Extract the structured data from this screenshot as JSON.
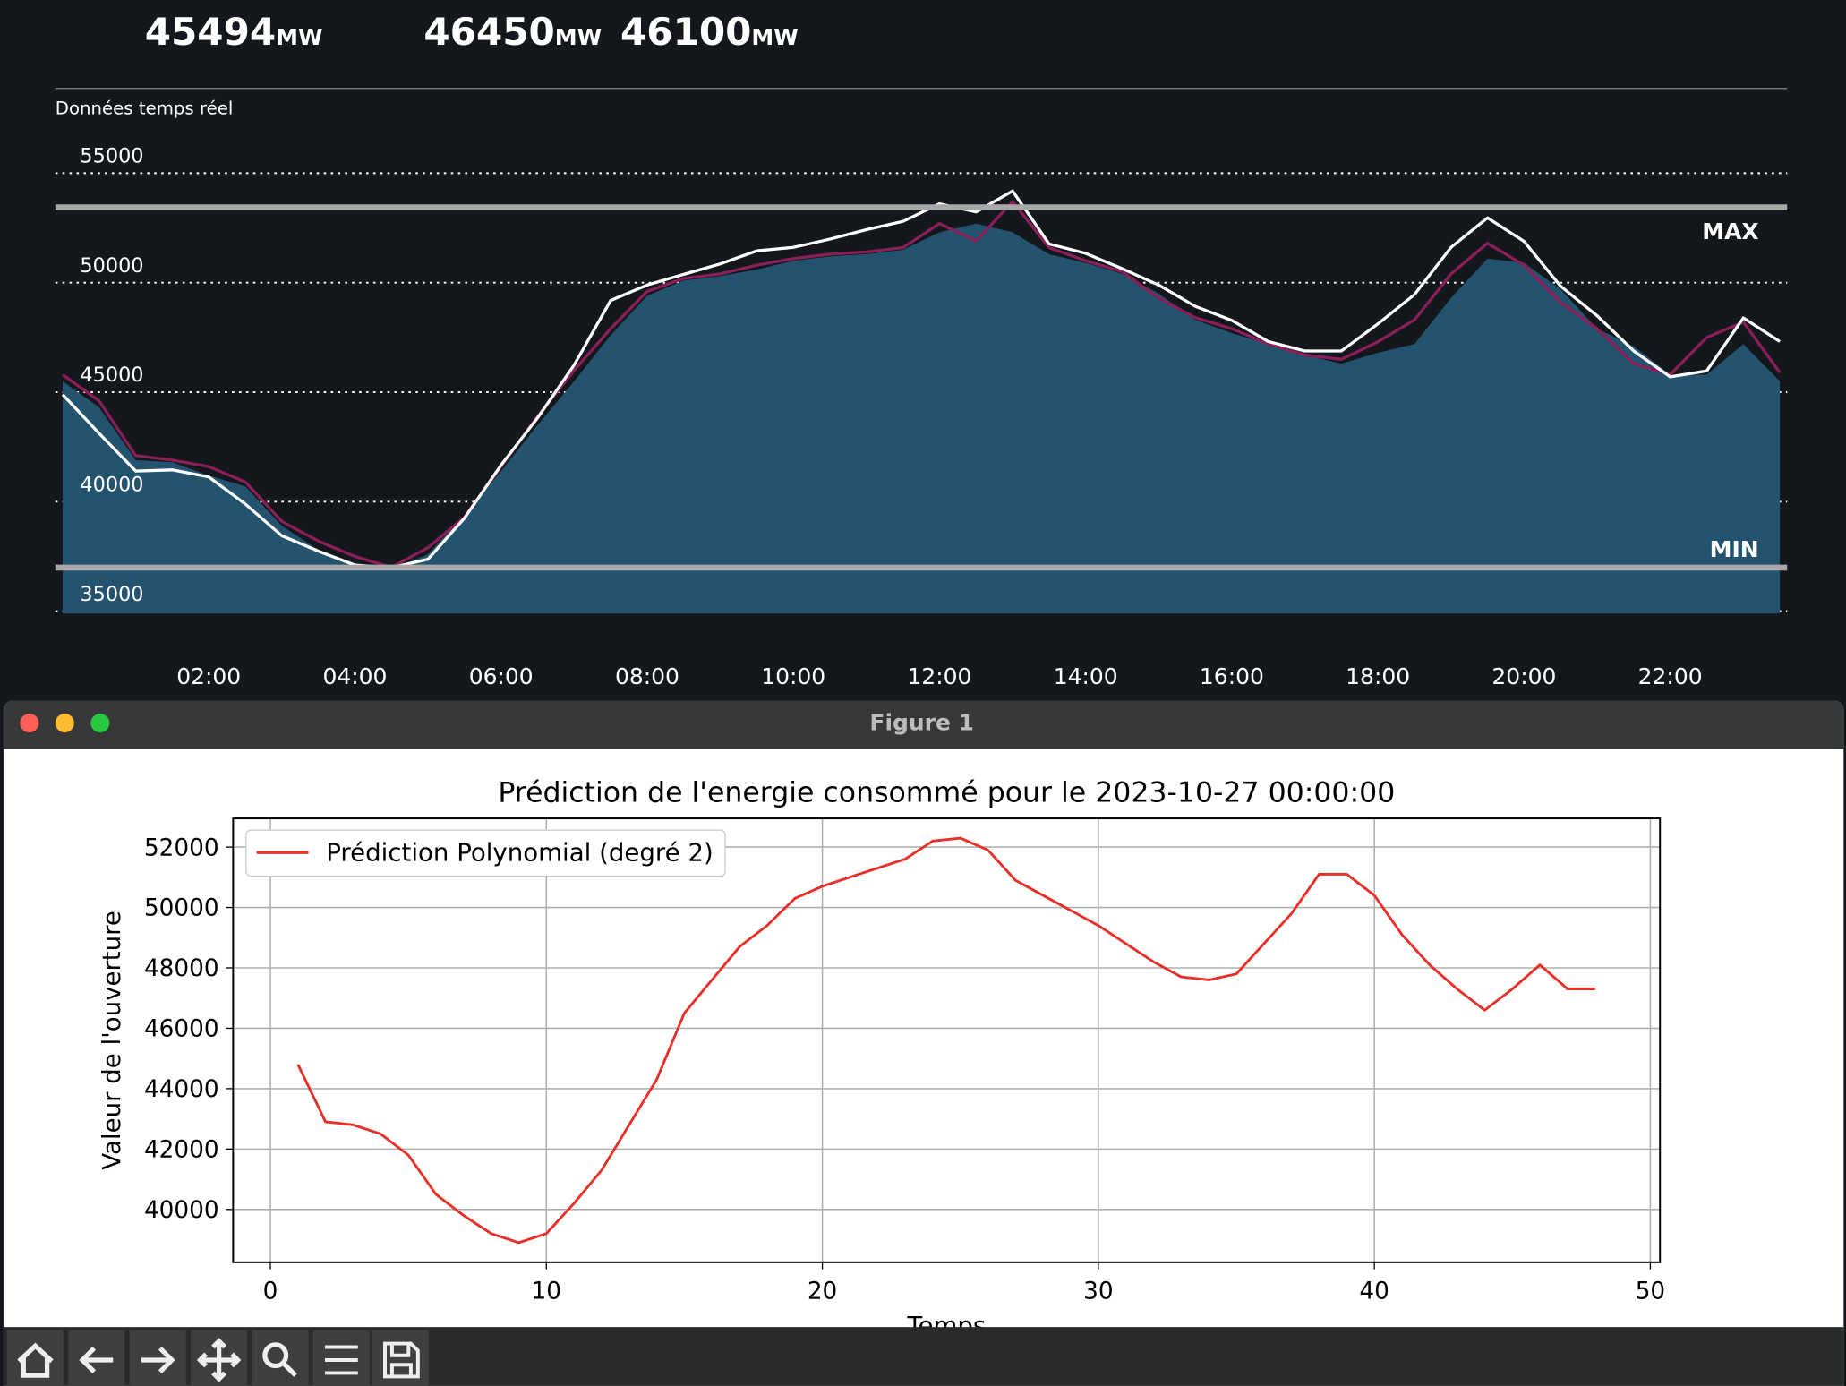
{
  "header": {
    "kpis": [
      {
        "value": "45494",
        "unit": "MW"
      },
      {
        "value": "46450",
        "unit": "MW"
      },
      {
        "value": "46100",
        "unit": "MW"
      }
    ]
  },
  "window": {
    "title": "Figure 1"
  },
  "chart_data": [
    {
      "type": "area",
      "subtitle": "Données temps réel",
      "x": [
        0,
        0.5,
        1,
        1.5,
        2,
        2.5,
        3,
        3.5,
        4,
        4.5,
        5,
        5.5,
        6,
        6.5,
        7,
        7.5,
        8,
        8.5,
        9,
        9.5,
        10,
        10.5,
        11,
        11.5,
        12,
        12.5,
        13,
        13.5,
        14,
        14.5,
        15,
        15.5,
        16,
        16.5,
        17,
        17.5,
        18,
        18.5,
        19,
        19.5,
        20,
        20.5,
        21,
        21.5,
        22,
        22.5,
        23,
        23.5
      ],
      "xlim": [
        -0.1,
        23.6
      ],
      "xticks": [
        {
          "value": 2,
          "label": "02:00"
        },
        {
          "value": 4,
          "label": "04:00"
        },
        {
          "value": 6,
          "label": "06:00"
        },
        {
          "value": 8,
          "label": "08:00"
        },
        {
          "value": 10,
          "label": "10:00"
        },
        {
          "value": 12,
          "label": "12:00"
        },
        {
          "value": 14,
          "label": "14:00"
        },
        {
          "value": 16,
          "label": "16:00"
        },
        {
          "value": 18,
          "label": "18:00"
        },
        {
          "value": 20,
          "label": "20:00"
        },
        {
          "value": 22,
          "label": "22:00"
        }
      ],
      "ylim": [
        35000,
        58870
      ],
      "yticks": [
        35000,
        40000,
        45000,
        50000,
        55000
      ],
      "grid": true,
      "series": [
        {
          "color": "#23536e",
          "fill": true,
          "values": [
            45500,
            44300,
            41900,
            41800,
            41200,
            40700,
            38900,
            37800,
            37200,
            36900,
            37600,
            39400,
            41400,
            43500,
            45500,
            47600,
            49400,
            50100,
            50300,
            50600,
            51000,
            51200,
            51300,
            51500,
            52300,
            52700,
            52300,
            51300,
            50900,
            50400,
            49500,
            48300,
            47700,
            47200,
            46700,
            46300,
            46800,
            47200,
            49300,
            51100,
            50900,
            49700,
            47900,
            47100,
            45800,
            45800,
            47200,
            45500
          ]
        },
        {
          "color": "#8a1f5a",
          "fill": false,
          "values": [
            45800,
            44600,
            42100,
            41900,
            41600,
            40900,
            39100,
            38200,
            37500,
            37000,
            37900,
            39300,
            41600,
            43900,
            46000,
            47900,
            49600,
            50200,
            50400,
            50800,
            51100,
            51300,
            51400,
            51600,
            52700,
            51900,
            53700,
            51600,
            51000,
            50500,
            49300,
            48400,
            47900,
            47200,
            46700,
            46500,
            47300,
            48300,
            50400,
            51800,
            50800,
            49100,
            47900,
            46300,
            45800,
            47500,
            48200,
            45900
          ]
        },
        {
          "color": "#ffffff",
          "fill": false,
          "values": [
            44890,
            43120,
            41400,
            41450,
            41130,
            39890,
            38440,
            37740,
            37100,
            36990,
            37370,
            39250,
            41670,
            43820,
            46240,
            49190,
            49890,
            50380,
            50860,
            51450,
            51610,
            51990,
            52420,
            52800,
            53600,
            53230,
            54190,
            51770,
            51340,
            50640,
            49890,
            48920,
            48280,
            47310,
            46880,
            46880,
            48120,
            49460,
            51610,
            52960,
            51880,
            49840,
            48490,
            46880,
            45700,
            45970,
            48390,
            47310
          ]
        }
      ],
      "ref_lines": [
        {
          "label": "MAX",
          "value": 53440,
          "color": "#a8a8a8"
        },
        {
          "label": "MIN",
          "value": 36990,
          "color": "#a8a8a8"
        }
      ]
    },
    {
      "type": "line",
      "title": "Prédiction de l'energie consommé pour le 2023-10-27 00:00:00",
      "xlabel": "Temps",
      "ylabel": "Valeur de l'ouverture",
      "x": [
        1,
        2,
        3,
        4,
        5,
        6,
        7,
        8,
        9,
        10,
        11,
        12,
        13,
        14,
        15,
        16,
        17,
        18,
        19,
        20,
        21,
        22,
        23,
        24,
        25,
        26,
        27,
        28,
        29,
        30,
        31,
        32,
        33,
        34,
        35,
        36,
        37,
        38,
        39,
        40,
        41,
        42,
        43,
        44,
        45,
        46,
        47,
        48
      ],
      "xlim": [
        -1.35,
        50.35
      ],
      "xticks": [
        0,
        10,
        20,
        30,
        40,
        50
      ],
      "ylim": [
        38250,
        52950
      ],
      "yticks": [
        40000,
        42000,
        44000,
        46000,
        48000,
        50000,
        52000
      ],
      "grid": true,
      "legend": "upper left",
      "series": [
        {
          "name": "Prédiction Polynomial (degré 2)",
          "color": "#e8302a",
          "values": [
            44800,
            42900,
            42800,
            42500,
            41800,
            40500,
            39800,
            39200,
            38900,
            39200,
            40200,
            41300,
            42800,
            44300,
            46500,
            47600,
            48700,
            49400,
            50300,
            50700,
            51000,
            51300,
            51600,
            52200,
            52300,
            51900,
            50900,
            50400,
            49900,
            49400,
            48800,
            48200,
            47700,
            47600,
            47800,
            48800,
            49800,
            51100,
            51100,
            50400,
            49100,
            48100,
            47300,
            46600,
            47300,
            48100,
            47300,
            47300
          ]
        }
      ]
    }
  ]
}
